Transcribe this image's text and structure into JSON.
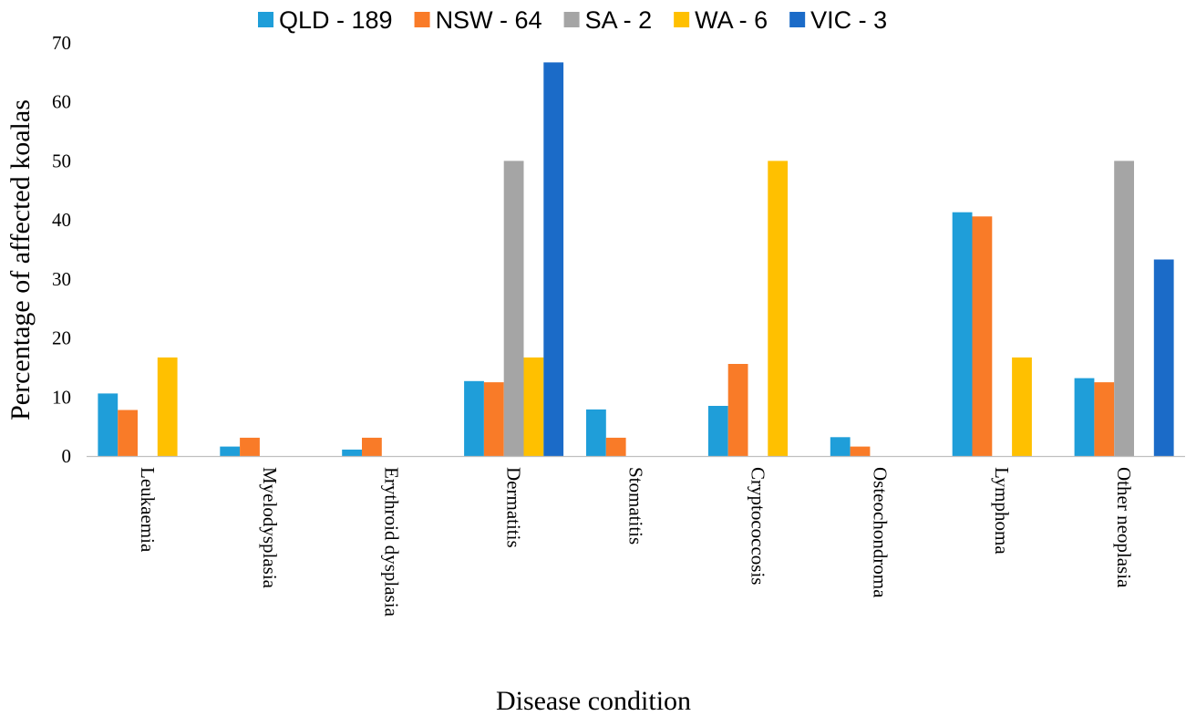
{
  "chart_data": {
    "type": "bar",
    "title": "",
    "xlabel": "Disease condition",
    "ylabel": "Percentage of affected koalas",
    "ylim": [
      0,
      70
    ],
    "yticks": [
      0,
      10,
      20,
      30,
      40,
      50,
      60,
      70
    ],
    "grid": false,
    "legend_position": "top",
    "categories": [
      "Leukaemia",
      "Myelodysplasia",
      "Erythroid dysplasia",
      "Dermatitis",
      "Stomatitis",
      "Cryptococcosis",
      "Osteochondroma",
      "Lymphoma",
      "Other neoplasia"
    ],
    "series": [
      {
        "name": "QLD - 189",
        "color": "#1F9ED9",
        "values": [
          10.6,
          1.6,
          1.1,
          12.7,
          7.9,
          8.5,
          3.2,
          41.3,
          13.2
        ]
      },
      {
        "name": "NSW - 64",
        "color": "#F97B28",
        "values": [
          7.8,
          3.1,
          3.1,
          12.5,
          3.1,
          15.6,
          1.6,
          40.6,
          12.5
        ]
      },
      {
        "name": "SA - 2",
        "color": "#A5A5A5",
        "values": [
          0,
          0,
          0,
          50,
          0,
          0,
          0,
          0,
          50
        ]
      },
      {
        "name": "WA - 6",
        "color": "#FFC000",
        "values": [
          16.7,
          0,
          0,
          16.7,
          0,
          50,
          0,
          16.7,
          0
        ]
      },
      {
        "name": "VIC - 3",
        "color": "#1B6BC8",
        "values": [
          0,
          0,
          0,
          66.7,
          0,
          0,
          0,
          0,
          33.3
        ]
      }
    ]
  }
}
